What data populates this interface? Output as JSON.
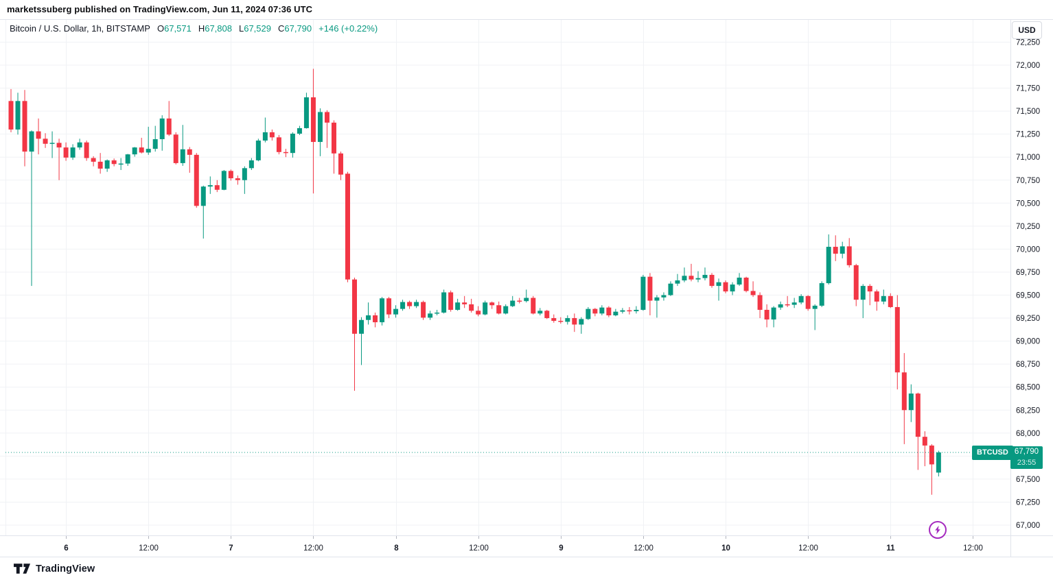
{
  "header": {
    "publish_line": "marketssuberg published on TradingView.com, Jun 11, 2024 07:36 UTC"
  },
  "legend": {
    "symbol": "Bitcoin / U.S. Dollar, 1h, BITSTAMP",
    "ohlc": [
      {
        "label": "O",
        "value": "67,571"
      },
      {
        "label": "H",
        "value": "67,808"
      },
      {
        "label": "L",
        "value": "67,529"
      },
      {
        "label": "C",
        "value": "67,790"
      }
    ],
    "change": "+146 (+0.22%)"
  },
  "currency_button": "USD",
  "price_line": {
    "symbol_label": "BTCUSD",
    "price": "67,790",
    "countdown": "23:55",
    "value": 67790
  },
  "watermark_logo": "TradingView",
  "event_marker": {
    "icon": "lightning-icon",
    "color": "#a52bbf"
  },
  "colors": {
    "up": "#089981",
    "down": "#f23645",
    "text": "#131722",
    "grid": "#f0f2f5",
    "border": "#e0e3eb",
    "tick": "#b2b5be",
    "accent": "#089981"
  },
  "price_axis": {
    "tick_values": [
      72250,
      72000,
      71750,
      71500,
      71250,
      71000,
      70750,
      70500,
      70250,
      70000,
      69750,
      69500,
      69250,
      69000,
      68750,
      68500,
      68250,
      68000,
      67750,
      67500,
      67250,
      67000
    ],
    "hidden_value": 67750
  },
  "time_axis": {
    "ticks": [
      {
        "label": "6",
        "h": 8,
        "emph": true
      },
      {
        "label": "12:00",
        "h": 20,
        "emph": false
      },
      {
        "label": "7",
        "h": 32,
        "emph": true
      },
      {
        "label": "12:00",
        "h": 44,
        "emph": false
      },
      {
        "label": "8",
        "h": 56,
        "emph": true
      },
      {
        "label": "12:00",
        "h": 68,
        "emph": false
      },
      {
        "label": "9",
        "h": 80,
        "emph": true
      },
      {
        "label": "12:00",
        "h": 92,
        "emph": false
      },
      {
        "label": "10",
        "h": 104,
        "emph": true
      },
      {
        "label": "12:00",
        "h": 116,
        "emph": false
      },
      {
        "label": "11",
        "h": 128,
        "emph": true
      },
      {
        "label": "12:00",
        "h": 140,
        "emph": false
      }
    ]
  },
  "chart_data": {
    "type": "candlestick",
    "title": "Bitcoin / U.S. Dollar",
    "exchange": "BITSTAMP",
    "interval": "1h",
    "first_candle_time": "Jun 5 16:00 UTC",
    "last_candle_time": "Jun 11 07:00 UTC",
    "visible_price_range": [
      66900,
      72300
    ],
    "current_candle": {
      "open": 67571,
      "high": 67808,
      "low": 67529,
      "close": 67790,
      "change": 146,
      "change_pct": 0.22
    },
    "current_price": 67790,
    "candles_ohlc": [
      [
        71610,
        71740,
        71270,
        71300
      ],
      [
        71300,
        71700,
        71245,
        71610
      ],
      [
        71610,
        71730,
        70900,
        71060
      ],
      [
        71060,
        71290,
        69600,
        71280
      ],
      [
        71280,
        71420,
        71030,
        71200
      ],
      [
        71200,
        71260,
        71100,
        71145
      ],
      [
        71145,
        71280,
        70990,
        71155
      ],
      [
        71155,
        71200,
        70750,
        71105
      ],
      [
        71105,
        71160,
        70960,
        70995
      ],
      [
        70995,
        71140,
        70970,
        71105
      ],
      [
        71105,
        71200,
        71080,
        71160
      ],
      [
        71160,
        71180,
        70960,
        70990
      ],
      [
        70990,
        71010,
        70900,
        70950
      ],
      [
        70950,
        71045,
        70820,
        70875
      ],
      [
        70875,
        70975,
        70840,
        70965
      ],
      [
        70965,
        70985,
        70900,
        70925
      ],
      [
        70925,
        70990,
        70860,
        70930
      ],
      [
        70930,
        71035,
        70905,
        71030
      ],
      [
        71030,
        71110,
        71005,
        71105
      ],
      [
        71105,
        71210,
        71040,
        71050
      ],
      [
        71050,
        71330,
        71025,
        71090
      ],
      [
        71090,
        71340,
        71060,
        71195
      ],
      [
        71195,
        71455,
        71070,
        71420
      ],
      [
        71420,
        71610,
        71230,
        71245
      ],
      [
        71245,
        71270,
        70920,
        70935
      ],
      [
        70935,
        71350,
        70905,
        71085
      ],
      [
        71085,
        71110,
        70830,
        71025
      ],
      [
        71025,
        71045,
        70450,
        70470
      ],
      [
        70470,
        70690,
        70115,
        70680
      ],
      [
        70680,
        70790,
        70600,
        70695
      ],
      [
        70695,
        70750,
        70620,
        70645
      ],
      [
        70645,
        70860,
        70640,
        70850
      ],
      [
        70850,
        70865,
        70745,
        70770
      ],
      [
        70770,
        70800,
        70700,
        70750
      ],
      [
        70750,
        70900,
        70600,
        70880
      ],
      [
        70880,
        70990,
        70860,
        70965
      ],
      [
        70965,
        71200,
        70955,
        71180
      ],
      [
        71180,
        71430,
        71160,
        71270
      ],
      [
        71270,
        71300,
        71180,
        71215
      ],
      [
        71215,
        71240,
        71030,
        71055
      ],
      [
        71055,
        71090,
        71000,
        71045
      ],
      [
        71045,
        71270,
        70995,
        71255
      ],
      [
        71255,
        71340,
        71240,
        71315
      ],
      [
        71315,
        71700,
        71310,
        71650
      ],
      [
        71650,
        71960,
        70605,
        71165
      ],
      [
        71165,
        71530,
        71010,
        71490
      ],
      [
        71490,
        71510,
        71100,
        71375
      ],
      [
        71375,
        71400,
        70820,
        71040
      ],
      [
        71040,
        71060,
        70750,
        70810
      ],
      [
        70820,
        70840,
        69640,
        69670
      ],
      [
        69670,
        69690,
        68460,
        69080
      ],
      [
        69080,
        69260,
        68740,
        69230
      ],
      [
        69230,
        69420,
        69180,
        69280
      ],
      [
        69280,
        69310,
        69150,
        69205
      ],
      [
        69205,
        69480,
        69170,
        69465
      ],
      [
        69465,
        69480,
        69250,
        69290
      ],
      [
        69290,
        69390,
        69255,
        69350
      ],
      [
        69350,
        69450,
        69330,
        69425
      ],
      [
        69425,
        69440,
        69350,
        69380
      ],
      [
        69380,
        69450,
        69360,
        69425
      ],
      [
        69425,
        69440,
        69230,
        69255
      ],
      [
        69255,
        69330,
        69230,
        69300
      ],
      [
        69300,
        69340,
        69280,
        69310
      ],
      [
        69310,
        69560,
        69300,
        69530
      ],
      [
        69530,
        69550,
        69320,
        69340
      ],
      [
        69340,
        69460,
        69330,
        69420
      ],
      [
        69420,
        69490,
        69360,
        69400
      ],
      [
        69400,
        69460,
        69310,
        69330
      ],
      [
        69330,
        69380,
        69270,
        69290
      ],
      [
        69290,
        69440,
        69280,
        69420
      ],
      [
        69420,
        69430,
        69350,
        69390
      ],
      [
        69390,
        69430,
        69290,
        69300
      ],
      [
        69300,
        69400,
        69290,
        69380
      ],
      [
        69380,
        69490,
        69370,
        69440
      ],
      [
        69440,
        69470,
        69410,
        69435
      ],
      [
        69435,
        69560,
        69420,
        69470
      ],
      [
        69470,
        69490,
        69290,
        69300
      ],
      [
        69300,
        69360,
        69280,
        69330
      ],
      [
        69330,
        69340,
        69240,
        69250
      ],
      [
        69250,
        69290,
        69200,
        69220
      ],
      [
        69220,
        69260,
        69190,
        69210
      ],
      [
        69210,
        69280,
        69180,
        69250
      ],
      [
        69250,
        69300,
        69100,
        69180
      ],
      [
        69180,
        69260,
        69080,
        69240
      ],
      [
        69240,
        69370,
        69230,
        69350
      ],
      [
        69350,
        69360,
        69270,
        69300
      ],
      [
        69300,
        69390,
        69280,
        69365
      ],
      [
        69365,
        69380,
        69260,
        69280
      ],
      [
        69280,
        69350,
        69270,
        69320
      ],
      [
        69320,
        69360,
        69300,
        69335
      ],
      [
        69335,
        69370,
        69290,
        69325
      ],
      [
        69325,
        69380,
        69300,
        69340
      ],
      [
        69340,
        69720,
        69330,
        69700
      ],
      [
        69700,
        69740,
        69280,
        69440
      ],
      [
        69440,
        69500,
        69255,
        69475
      ],
      [
        69475,
        69530,
        69440,
        69500
      ],
      [
        69500,
        69650,
        69490,
        69625
      ],
      [
        69625,
        69730,
        69600,
        69660
      ],
      [
        69660,
        69800,
        69640,
        69710
      ],
      [
        69710,
        69840,
        69650,
        69670
      ],
      [
        69670,
        69760,
        69640,
        69685
      ],
      [
        69685,
        69800,
        69660,
        69720
      ],
      [
        69720,
        69740,
        69580,
        69600
      ],
      [
        69600,
        69680,
        69440,
        69640
      ],
      [
        69640,
        69660,
        69520,
        69540
      ],
      [
        69540,
        69640,
        69500,
        69615
      ],
      [
        69615,
        69740,
        69600,
        69690
      ],
      [
        69690,
        69700,
        69530,
        69545
      ],
      [
        69545,
        69650,
        69480,
        69500
      ],
      [
        69500,
        69530,
        69250,
        69340
      ],
      [
        69340,
        69400,
        69150,
        69235
      ],
      [
        69235,
        69380,
        69150,
        69365
      ],
      [
        69365,
        69430,
        69340,
        69400
      ],
      [
        69400,
        69490,
        69370,
        69395
      ],
      [
        69395,
        69470,
        69360,
        69420
      ],
      [
        69420,
        69510,
        69400,
        69490
      ],
      [
        69490,
        69500,
        69330,
        69350
      ],
      [
        69350,
        69400,
        69120,
        69385
      ],
      [
        69385,
        69650,
        69370,
        69630
      ],
      [
        69630,
        70160,
        69615,
        70025
      ],
      [
        70025,
        70150,
        69870,
        69950
      ],
      [
        69950,
        70080,
        69900,
        70030
      ],
      [
        70030,
        70120,
        69800,
        69825
      ],
      [
        69825,
        69840,
        69380,
        69450
      ],
      [
        69450,
        69620,
        69250,
        69600
      ],
      [
        69600,
        69620,
        69390,
        69540
      ],
      [
        69540,
        69560,
        69330,
        69430
      ],
      [
        69430,
        69560,
        69400,
        69490
      ],
      [
        69490,
        69520,
        69360,
        69370
      ],
      [
        69370,
        69500,
        68475,
        68660
      ],
      [
        68660,
        68870,
        67880,
        68250
      ],
      [
        68250,
        68530,
        68120,
        68430
      ],
      [
        68430,
        68440,
        67600,
        67960
      ],
      [
        67960,
        68020,
        67640,
        67865
      ],
      [
        67865,
        67880,
        67330,
        67660
      ],
      [
        67571,
        67808,
        67529,
        67790
      ]
    ]
  }
}
